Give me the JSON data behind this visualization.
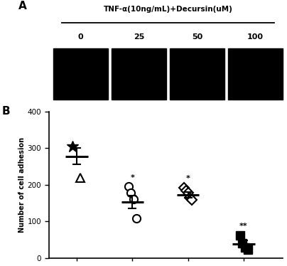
{
  "panel_A_label": "A",
  "panel_B_label": "B",
  "top_label": "TNF-α(10ng/mL)+Decursin(uM)",
  "concentrations": [
    "0",
    "25",
    "50",
    "100"
  ],
  "ylabel": "Number of cell adhesion",
  "ylim": [
    0,
    400
  ],
  "yticks": [
    0,
    100,
    200,
    300,
    400
  ],
  "groups": {
    "0": {
      "mean": 278,
      "sem": 22,
      "points": [
        305,
        220
      ],
      "markers": [
        "star_filled",
        "triangle_open"
      ]
    },
    "25": {
      "mean": 153,
      "sem": 18,
      "points": [
        195,
        178,
        160,
        108
      ],
      "markers": [
        "circle_open",
        "circle_open",
        "circle_open",
        "circle_open"
      ]
    },
    "50": {
      "mean": 172,
      "sem": 8,
      "points": [
        192,
        185,
        178,
        165,
        158
      ],
      "markers": [
        "diamond_open",
        "diamond_open",
        "diamond_open",
        "diamond_open",
        "diamond_open"
      ]
    },
    "100": {
      "mean": 38,
      "sem": 10,
      "points": [
        62,
        40,
        28,
        22
      ],
      "markers": [
        "square_filled",
        "square_filled",
        "square_filled",
        "square_filled"
      ]
    }
  },
  "significance": {
    "25": "*",
    "50": "*",
    "100": "**"
  },
  "x_positions": [
    1,
    2,
    3,
    4
  ],
  "background_color": "#ffffff",
  "errorbar_color": "#000000",
  "mean_line_color": "#000000"
}
